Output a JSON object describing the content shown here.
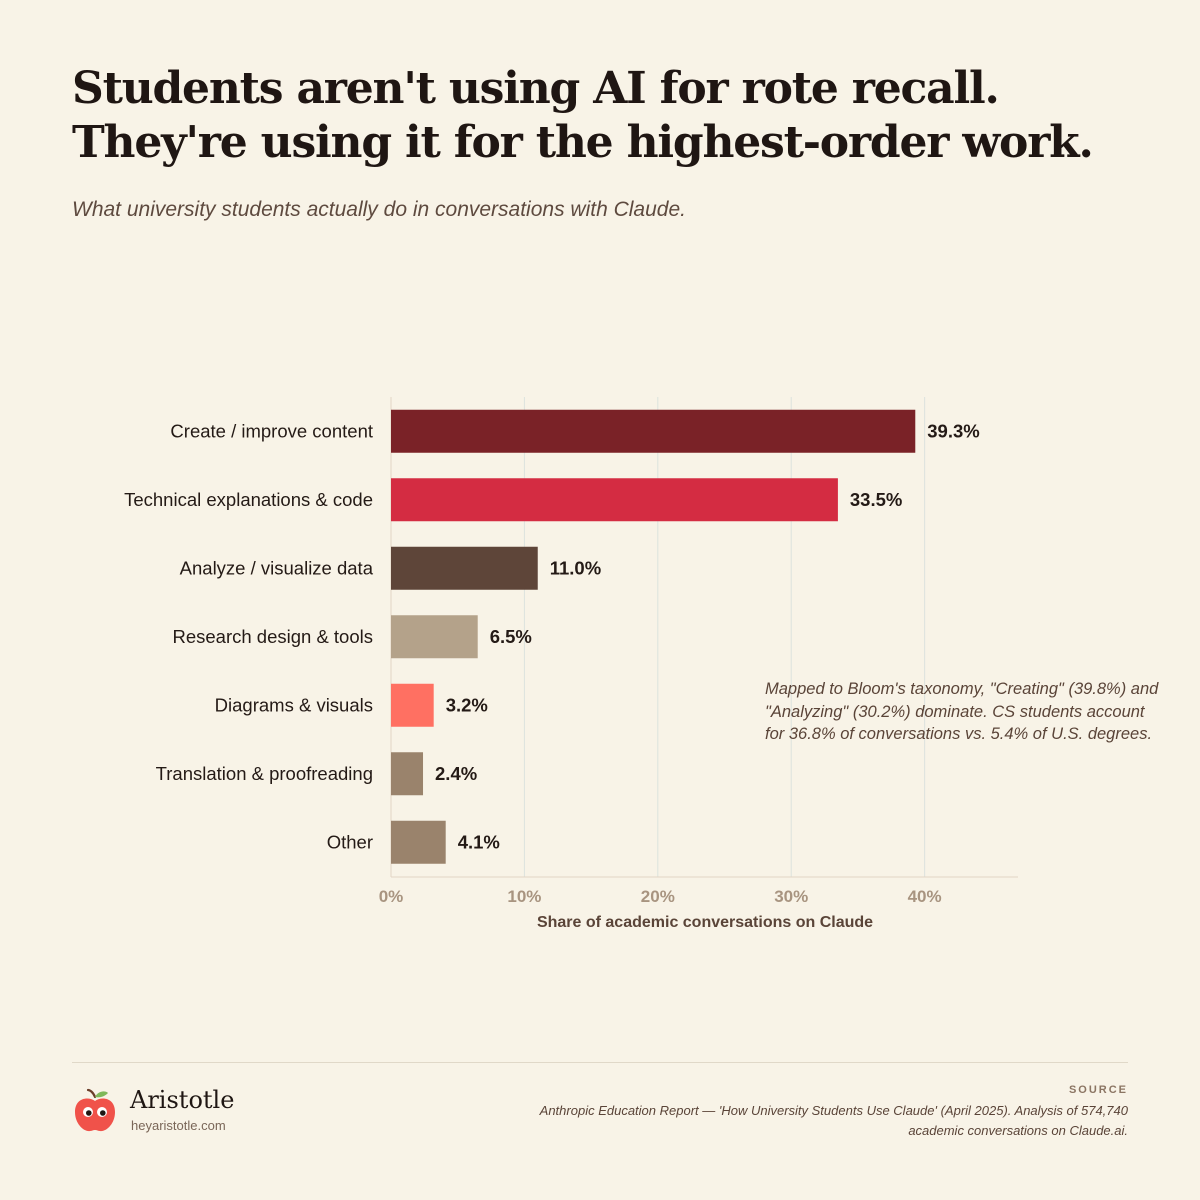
{
  "header": {
    "title_lines": [
      "Students aren't using AI for rote recall.",
      "They're using it for the highest-order work."
    ],
    "subtitle": "What university students actually do in conversations with Claude."
  },
  "chart_data": {
    "type": "bar",
    "orientation": "horizontal",
    "categories": [
      "Create / improve content",
      "Technical explanations & code",
      "Analyze / visualize data",
      "Research design & tools",
      "Diagrams & visuals",
      "Translation & proofreading",
      "Other"
    ],
    "values": [
      39.3,
      33.5,
      11.0,
      6.5,
      3.2,
      2.4,
      4.1
    ],
    "value_labels": [
      "39.3%",
      "33.5%",
      "11.0%",
      "6.5%",
      "3.2%",
      "2.4%",
      "4.1%"
    ],
    "colors": [
      "#7a2227",
      "#d42c42",
      "#5e4539",
      "#b4a28a",
      "#ff7062",
      "#9a836c",
      "#9a836c"
    ],
    "xlabel": "Share of academic conversations on Claude",
    "xlim": [
      0,
      47
    ],
    "xticks": [
      0,
      10,
      20,
      30,
      40
    ],
    "xtick_labels": [
      "0%",
      "10%",
      "20%",
      "30%",
      "40%"
    ],
    "grid": "vertical",
    "annotation": "Mapped to Bloom's taxonomy, \"Creating\" (39.8%) and \"Analyzing\" (30.2%) dominate. CS students account for 36.8% of conversations vs. 5.4% of U.S. degrees."
  },
  "footer": {
    "brand_name": "Aristotle",
    "brand_url": "heyaristotle.com",
    "logo_icon": "apple-icon",
    "source_label": "SOURCE",
    "source_text": "Anthropic Education Report — 'How University Students Use Claude' (April 2025). Analysis of 574,740 academic conversations on Claude.ai."
  }
}
